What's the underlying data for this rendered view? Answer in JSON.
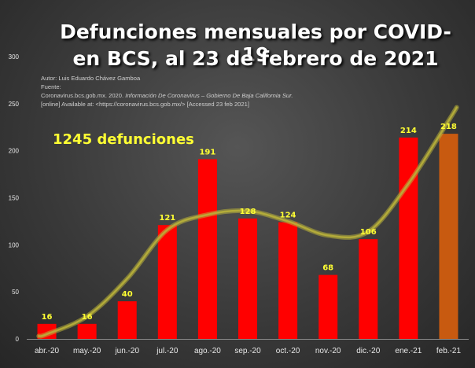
{
  "title_line1": "Defunciones mensuales por COVID-19",
  "title_line2": "en BCS, al 23 de febrero de 2021",
  "source": {
    "line1": "Autor: Luis Eduardo Chávez Gamboa",
    "line2": "Fuente:",
    "line3_prefix": "Coronavirus.bcs.gob.mx. 2020. ",
    "line3_italic": "Información De Coronavirus – Gobierno De Baja California Sur.",
    "line4": "[online] Available at: <https://coronavirus.bcs.gob.mx/> [Accessed 23 feb 2021]"
  },
  "annotation": "1245 defunciones",
  "colors": {
    "bar": "#ff0000",
    "bar_highlight": "#c85a10",
    "label": "#ffff33",
    "trendline": "#b8b03a",
    "axis_text": "#e8e8e8"
  },
  "chart_data": {
    "type": "bar",
    "categories": [
      "abr.-20",
      "may.-20",
      "jun.-20",
      "jul.-20",
      "ago.-20",
      "sep.-20",
      "oct.-20",
      "nov.-20",
      "dic.-20",
      "ene.-21",
      "feb.-21"
    ],
    "values": [
      16,
      16,
      40,
      121,
      191,
      128,
      124,
      68,
      106,
      214,
      218
    ],
    "data_labels": [
      "16",
      "16",
      "40",
      "121",
      "191",
      "128",
      "124",
      "68",
      "106",
      "214",
      "218"
    ],
    "highlight_index": 10,
    "ylim": [
      0,
      300
    ],
    "yticks": [
      0,
      50,
      100,
      150,
      200,
      250,
      300
    ],
    "trendline": {
      "type": "polynomial",
      "x_index": [
        -0.2,
        0,
        1,
        2,
        3,
        4,
        5,
        6,
        7,
        8,
        9,
        10,
        10.2
      ],
      "values": [
        3,
        5,
        24,
        64,
        116,
        132,
        136,
        125,
        110,
        114,
        165,
        232,
        246
      ]
    },
    "grid": false,
    "legend": "none"
  }
}
